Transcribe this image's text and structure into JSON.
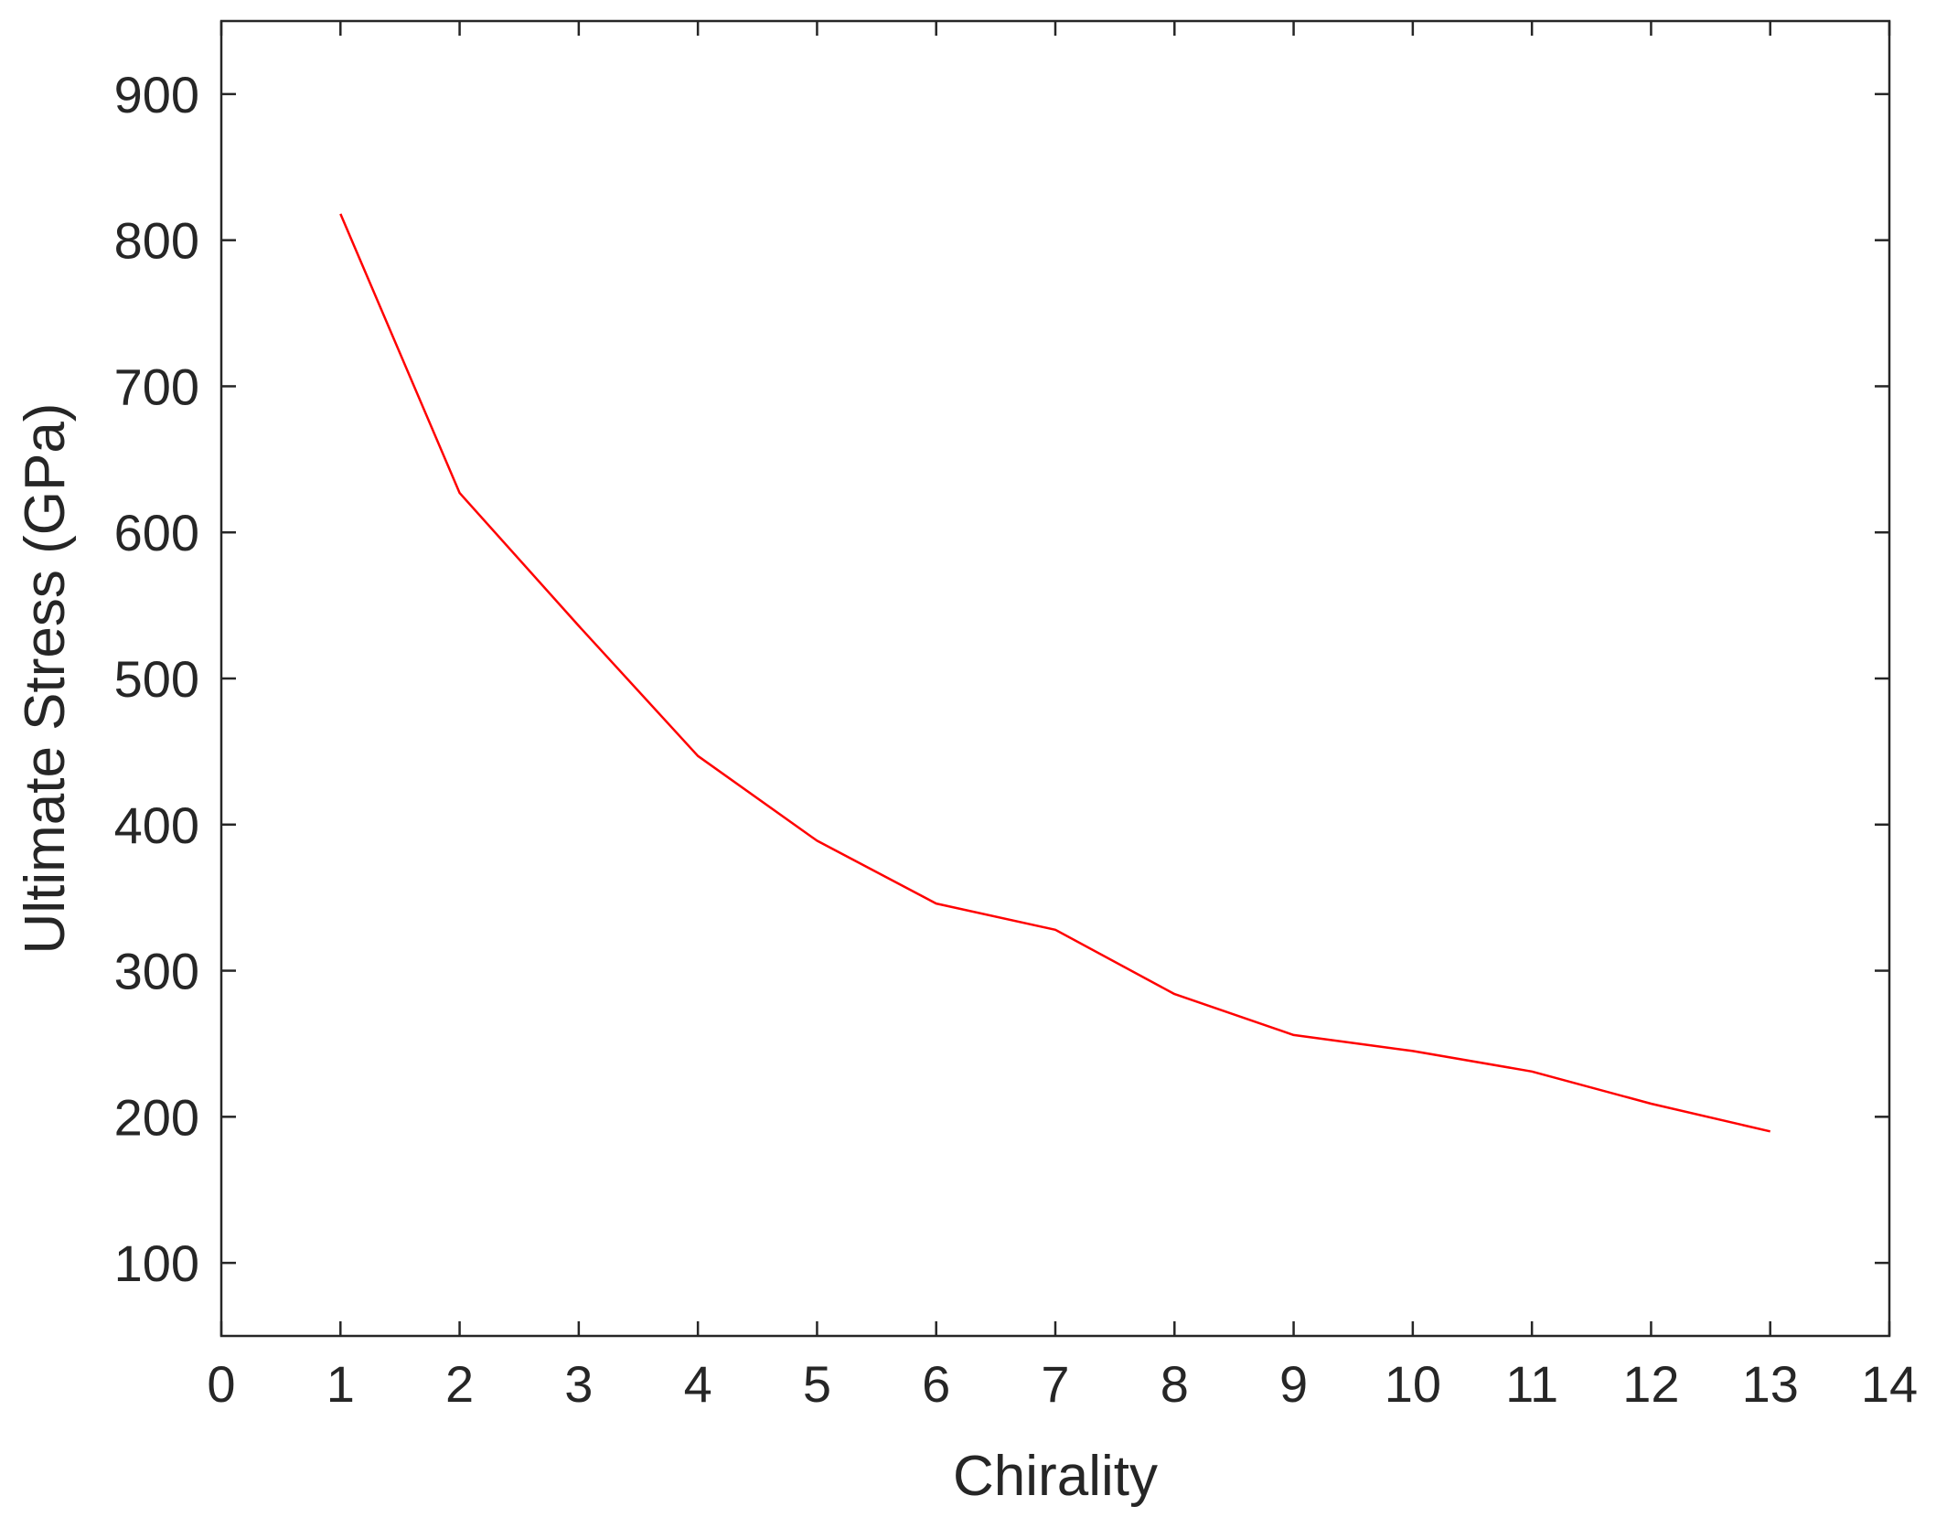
{
  "chart_data": {
    "type": "line",
    "title": "",
    "xlabel": "Chirality",
    "ylabel": "Ultimate Stress (GPa)",
    "xlim": [
      0,
      14
    ],
    "ylim": [
      50,
      950
    ],
    "xticks": [
      0,
      1,
      2,
      3,
      4,
      5,
      6,
      7,
      8,
      9,
      10,
      11,
      12,
      13,
      14
    ],
    "yticks": [
      100,
      200,
      300,
      400,
      500,
      600,
      700,
      800,
      900
    ],
    "grid": false,
    "series": [
      {
        "color": "#ff0000",
        "x": [
          1,
          2,
          3,
          4,
          5,
          6,
          7,
          8,
          9,
          10,
          11,
          12,
          13
        ],
        "y": [
          818,
          627,
          536,
          447,
          389,
          346,
          328,
          284,
          256,
          245,
          231,
          209,
          190
        ]
      }
    ]
  }
}
